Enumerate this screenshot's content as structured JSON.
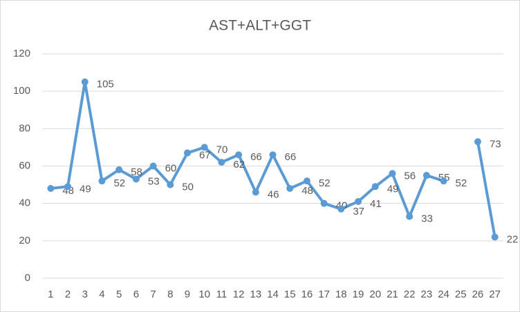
{
  "chart_data": {
    "type": "line",
    "title": "AST+ALT+GGT",
    "categories": [
      "1",
      "2",
      "3",
      "4",
      "5",
      "6",
      "7",
      "8",
      "9",
      "10",
      "11",
      "12",
      "13",
      "14",
      "15",
      "16",
      "17",
      "18",
      "19",
      "20",
      "21",
      "22",
      "23",
      "24",
      "25",
      "26",
      "27"
    ],
    "values": [
      48,
      49,
      105,
      52,
      58,
      53,
      60,
      50,
      67,
      70,
      62,
      66,
      46,
      66,
      48,
      52,
      40,
      37,
      41,
      49,
      56,
      33,
      55,
      52,
      null,
      73,
      22
    ],
    "color": "#5b9bd5",
    "ylim": [
      0,
      120
    ],
    "yticks": [
      0,
      20,
      40,
      60,
      80,
      100,
      120
    ],
    "grid": true
  }
}
